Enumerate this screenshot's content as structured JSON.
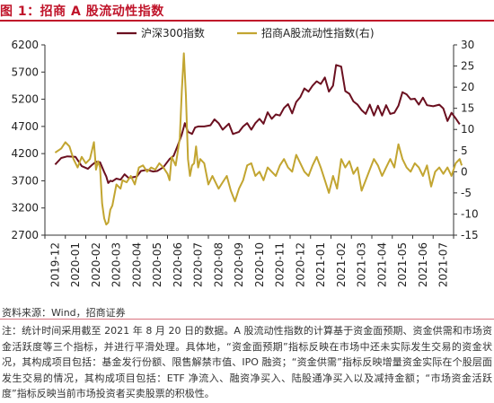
{
  "figure": {
    "title": "图 1：招商 A 股流动性指数",
    "source": "资料来源：Wind，招商证券",
    "note": "注：统计时间采用截至 2021 年 8 月 20 日的数据。A 股流动性指数的计算基于资金面预期、资金供需和市场资金活跃度等三个指标，并进行平滑处理。具体地，“资金面预期”指标反映在市场中还未实际发生交易的资金状况，其构成项目包括：基金发行份额、限售解禁市值、IPO 融资；“资金供需”指标反映增量资金实际在个股层面发生交易的情况，其构成项目包括：ETF 净流入、融资净买入、陆股通净买入以及减持金额；“市场资金活跃度”指标反映当前市场投资者买卖股票的积极性。"
  },
  "chart_data": {
    "type": "line",
    "title": "",
    "legend_position": "top",
    "grid": false,
    "x_tick_labels": [
      "2019-12",
      "2020-01",
      "2020-02",
      "2020-03",
      "2020-04",
      "2020-05",
      "2020-06",
      "2020-07",
      "2020-08",
      "2020-09",
      "2020-10",
      "2020-11",
      "2020-12",
      "2021-01",
      "2021-02",
      "2021-03",
      "2021-04",
      "2021-05",
      "2021-06",
      "2021-07"
    ],
    "y_left": {
      "lim": [
        2700,
        6200
      ],
      "ticks": [
        2700,
        3200,
        3700,
        4200,
        4700,
        5200,
        5700,
        6200
      ]
    },
    "y_right": {
      "lim": [
        -15,
        30
      ],
      "ticks": [
        -15,
        -10,
        -5,
        0,
        5,
        10,
        15,
        20,
        25,
        30
      ]
    },
    "series": [
      {
        "name": "沪深300指数",
        "axis": "left",
        "color": "#6b1020",
        "points": [
          [
            0,
            4000
          ],
          [
            0.3,
            4120
          ],
          [
            0.6,
            4150
          ],
          [
            1,
            4140
          ],
          [
            1.3,
            3970
          ],
          [
            1.6,
            3920
          ],
          [
            1.8,
            3990
          ],
          [
            2,
            4050
          ],
          [
            2.2,
            4040
          ],
          [
            2.4,
            3860
          ],
          [
            2.5,
            3780
          ],
          [
            2.6,
            3660
          ],
          [
            2.7,
            3700
          ],
          [
            2.8,
            3690
          ],
          [
            3,
            3740
          ],
          [
            3.2,
            3720
          ],
          [
            3.4,
            3820
          ],
          [
            3.6,
            3750
          ],
          [
            4,
            3780
          ],
          [
            4.2,
            3880
          ],
          [
            4.5,
            3900
          ],
          [
            4.8,
            3870
          ],
          [
            5,
            3880
          ],
          [
            5.3,
            3950
          ],
          [
            5.6,
            4100
          ],
          [
            5.8,
            4160
          ],
          [
            6,
            4350
          ],
          [
            6.2,
            4550
          ],
          [
            6.35,
            4760
          ],
          [
            6.5,
            4600
          ],
          [
            6.7,
            4560
          ],
          [
            6.85,
            4680
          ],
          [
            7,
            4700
          ],
          [
            7.3,
            4700
          ],
          [
            7.6,
            4720
          ],
          [
            7.8,
            4830
          ],
          [
            8,
            4760
          ],
          [
            8.2,
            4640
          ],
          [
            8.5,
            4750
          ],
          [
            8.7,
            4560
          ],
          [
            9,
            4600
          ],
          [
            9.2,
            4700
          ],
          [
            9.4,
            4760
          ],
          [
            9.6,
            4640
          ],
          [
            9.8,
            4760
          ],
          [
            10,
            4840
          ],
          [
            10.2,
            4750
          ],
          [
            10.4,
            4960
          ],
          [
            10.6,
            4840
          ],
          [
            10.8,
            4920
          ],
          [
            11,
            4900
          ],
          [
            11.2,
            5040
          ],
          [
            11.4,
            5110
          ],
          [
            11.6,
            4940
          ],
          [
            11.8,
            5150
          ],
          [
            12,
            5240
          ],
          [
            12.2,
            5400
          ],
          [
            12.4,
            5340
          ],
          [
            12.6,
            5450
          ],
          [
            12.8,
            5530
          ],
          [
            13,
            5480
          ],
          [
            13.2,
            5600
          ],
          [
            13.4,
            5340
          ],
          [
            13.6,
            5450
          ],
          [
            13.75,
            5830
          ],
          [
            14,
            5800
          ],
          [
            14.2,
            5350
          ],
          [
            14.4,
            5300
          ],
          [
            14.6,
            5160
          ],
          [
            14.8,
            5100
          ],
          [
            15,
            5000
          ],
          [
            15.2,
            4930
          ],
          [
            15.4,
            5100
          ],
          [
            15.6,
            4900
          ],
          [
            15.8,
            5080
          ],
          [
            16,
            4900
          ],
          [
            16.2,
            5090
          ],
          [
            16.4,
            4930
          ],
          [
            16.6,
            4950
          ],
          [
            16.8,
            5080
          ],
          [
            17,
            5330
          ],
          [
            17.2,
            5290
          ],
          [
            17.4,
            5200
          ],
          [
            17.6,
            5210
          ],
          [
            17.8,
            5100
          ],
          [
            18,
            5230
          ],
          [
            18.2,
            5090
          ],
          [
            18.5,
            5070
          ],
          [
            18.8,
            5100
          ],
          [
            19,
            5030
          ],
          [
            19.2,
            4800
          ],
          [
            19.4,
            4950
          ],
          [
            19.6,
            4850
          ],
          [
            19.8,
            4740
          ]
        ]
      },
      {
        "name": "招商A股流动性指数(右)",
        "axis": "right",
        "color": "#c2a531",
        "points": [
          [
            0,
            4.5
          ],
          [
            0.3,
            5.5
          ],
          [
            0.5,
            7
          ],
          [
            0.7,
            6
          ],
          [
            0.9,
            3
          ],
          [
            1.1,
            1
          ],
          [
            1.3,
            3.5
          ],
          [
            1.5,
            2
          ],
          [
            1.7,
            3
          ],
          [
            1.9,
            7
          ],
          [
            2,
            0.5
          ],
          [
            2.1,
            2.5
          ],
          [
            2.2,
            1
          ],
          [
            2.3,
            -7.5
          ],
          [
            2.4,
            -11
          ],
          [
            2.5,
            -12.5
          ],
          [
            2.6,
            -12
          ],
          [
            2.7,
            -9
          ],
          [
            2.8,
            -8
          ],
          [
            3,
            -3
          ],
          [
            3.2,
            -4
          ],
          [
            3.3,
            -2
          ],
          [
            3.5,
            -2.5
          ],
          [
            3.7,
            -1
          ],
          [
            3.9,
            -3
          ],
          [
            4.1,
            1
          ],
          [
            4.3,
            1.5
          ],
          [
            4.5,
            0
          ],
          [
            4.7,
            1
          ],
          [
            4.9,
            0.5
          ],
          [
            5.1,
            2
          ],
          [
            5.3,
            1
          ],
          [
            5.5,
            -0.5
          ],
          [
            5.6,
            -2
          ],
          [
            5.7,
            3.5
          ],
          [
            5.9,
            1.5
          ],
          [
            6.1,
            8
          ],
          [
            6.2,
            19
          ],
          [
            6.3,
            28
          ],
          [
            6.4,
            18
          ],
          [
            6.5,
            3
          ],
          [
            6.6,
            -1
          ],
          [
            6.7,
            1.5
          ],
          [
            6.8,
            2
          ],
          [
            6.9,
            6
          ],
          [
            7,
            1
          ],
          [
            7.1,
            3
          ],
          [
            7.3,
            2
          ],
          [
            7.5,
            -3
          ],
          [
            7.7,
            -1
          ],
          [
            7.8,
            -2
          ],
          [
            8,
            -4
          ],
          [
            8.2,
            -2.5
          ],
          [
            8.4,
            -1
          ],
          [
            8.6,
            -4.5
          ],
          [
            8.8,
            -7
          ],
          [
            9,
            -4
          ],
          [
            9.2,
            -2
          ],
          [
            9.4,
            1.5
          ],
          [
            9.6,
            2
          ],
          [
            9.8,
            -1
          ],
          [
            10,
            0
          ],
          [
            10.2,
            -2
          ],
          [
            10.4,
            1
          ],
          [
            10.6,
            0
          ],
          [
            10.8,
            -1
          ],
          [
            11,
            1.5
          ],
          [
            11.2,
            3
          ],
          [
            11.4,
            1
          ],
          [
            11.6,
            0
          ],
          [
            11.8,
            4
          ],
          [
            12,
            2
          ],
          [
            12.2,
            0
          ],
          [
            12.4,
            -1
          ],
          [
            12.6,
            1.5
          ],
          [
            12.8,
            3.5
          ],
          [
            13,
            1
          ],
          [
            13.2,
            -2
          ],
          [
            13.4,
            -5
          ],
          [
            13.6,
            -1
          ],
          [
            13.8,
            -4
          ],
          [
            14,
            3
          ],
          [
            14.2,
            1
          ],
          [
            14.4,
            2.5
          ],
          [
            14.6,
            -0.5
          ],
          [
            14.8,
            1
          ],
          [
            15,
            -4.5
          ],
          [
            15.2,
            -2
          ],
          [
            15.4,
            0.5
          ],
          [
            15.6,
            3
          ],
          [
            15.8,
            1.5
          ],
          [
            16,
            -1
          ],
          [
            16.2,
            1
          ],
          [
            16.4,
            3
          ],
          [
            16.6,
            1
          ],
          [
            16.8,
            6.5
          ],
          [
            17,
            3
          ],
          [
            17.2,
            1
          ],
          [
            17.4,
            0
          ],
          [
            17.6,
            2
          ],
          [
            17.8,
            1
          ],
          [
            18,
            -1
          ],
          [
            18.2,
            1.5
          ],
          [
            18.4,
            -3.5
          ],
          [
            18.6,
            0
          ],
          [
            18.8,
            1
          ],
          [
            19,
            -0.5
          ],
          [
            19.2,
            1
          ],
          [
            19.4,
            -1
          ],
          [
            19.6,
            2
          ],
          [
            19.8,
            3
          ],
          [
            19.9,
            1.5
          ]
        ]
      }
    ]
  }
}
